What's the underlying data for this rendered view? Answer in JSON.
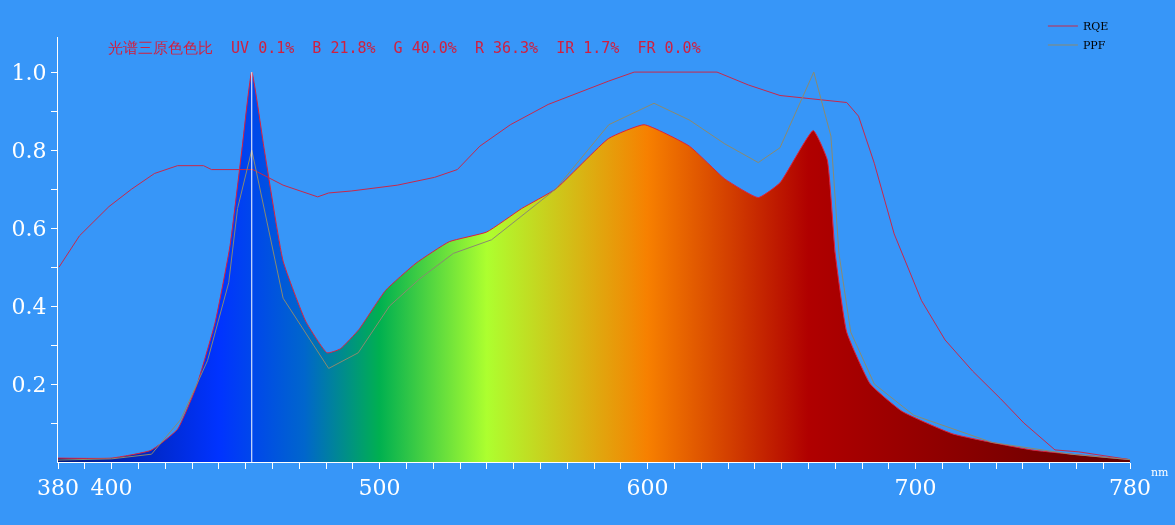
{
  "chart_data": {
    "type": "area",
    "annotations": [
      "光谱三原色色比  UV 0.1%  B 21.8%  G 40.0%  R 36.3%  IR 1.7%  FR 0.0%"
    ],
    "xlabel": "nm",
    "series": [
      {
        "color": "#e0203a",
        "x": [
          380,
          400,
          414.7,
          424.6,
          431.7,
          438.7,
          444.2,
          448.6,
          452.3,
          457,
          464,
          472.5,
          480.4,
          485.3,
          492.3,
          502.2,
          513.6,
          526,
          540,
          553,
          565.7,
          585.5,
          598.7,
          615.6,
          628.8,
          641.3,
          649.4,
          661.8,
          667,
          670,
          674.3,
          683.1,
          694.9,
          713.9,
          743.3,
          780
        ],
        "values": [
          0.01,
          0.01,
          0.03,
          0.084,
          0.195,
          0.36,
          0.555,
          0.8,
          1.0,
          0.8,
          0.515,
          0.36,
          0.28,
          0.29,
          0.34,
          0.44,
          0.51,
          0.565,
          0.59,
          0.65,
          0.7,
          0.83,
          0.865,
          0.81,
          0.726,
          0.678,
          0.716,
          0.85,
          0.776,
          0.535,
          0.333,
          0.2,
          0.13,
          0.072,
          0.031,
          0.006
        ]
      },
      {
        "type": "line",
        "name": "RQE",
        "color": "#c8284a",
        "x": [
          380.4,
          388,
          399,
          407.5,
          416,
          424.6,
          434.3,
          437.3,
          452.7,
          464,
          476.9,
          481,
          489.4,
          506.6,
          520.5,
          529,
          537.4,
          548.8,
          562.9,
          585.5,
          595,
          625.9,
          637.6,
          649.4,
          674.3,
          678.7,
          684.6,
          692,
          702.2,
          711,
          721.3,
          731.6,
          740.4,
          752,
          760.9,
          780
        ],
        "values": [
          0.5,
          0.58,
          0.655,
          0.7,
          0.74,
          0.76,
          0.76,
          0.75,
          0.75,
          0.71,
          0.68,
          0.69,
          0.695,
          0.71,
          0.73,
          0.75,
          0.81,
          0.865,
          0.917,
          0.977,
          1.0,
          1.0,
          0.967,
          0.94,
          0.922,
          0.887,
          0.766,
          0.585,
          0.414,
          0.313,
          0.233,
          0.163,
          0.1,
          0.031,
          0.026,
          0.006
        ]
      },
      {
        "type": "line",
        "name": "PPF",
        "color": "#8a8a70",
        "x": [
          380,
          400,
          414.9,
          425.9,
          435.8,
          443.7,
          447,
          452.3,
          464,
          481,
          492,
          503.7,
          515,
          527.5,
          541.8,
          565.7,
          585.5,
          602.4,
          615.6,
          628.8,
          641.3,
          649.4,
          662,
          668.4,
          671.4,
          675.8,
          684.6,
          699.3,
          728.6,
          758,
          780
        ],
        "values": [
          0.005,
          0.008,
          0.02,
          0.11,
          0.26,
          0.46,
          0.65,
          0.8,
          0.42,
          0.24,
          0.28,
          0.4,
          0.47,
          0.535,
          0.57,
          0.7,
          0.865,
          0.92,
          0.877,
          0.816,
          0.768,
          0.806,
          1.0,
          0.836,
          0.535,
          0.333,
          0.2,
          0.12,
          0.05,
          0.02,
          0.006
        ]
      }
    ],
    "ref_lines": [
      {
        "axis": "x",
        "value": 452.3,
        "color": "#ffffff"
      }
    ],
    "xlim": [
      380,
      780
    ],
    "xticks": [
      380,
      {
        "value": 390,
        "label": null
      },
      400,
      {
        "value": 410,
        "label": null
      },
      {
        "value": 420,
        "label": null
      },
      {
        "value": 430,
        "label": null
      },
      {
        "value": 440,
        "label": null
      },
      {
        "value": 450,
        "label": null
      },
      {
        "value": 460,
        "label": null
      },
      {
        "value": 470,
        "label": null
      },
      {
        "value": 480,
        "label": null
      },
      {
        "value": 490,
        "label": null
      },
      500,
      {
        "value": 510,
        "label": null
      },
      {
        "value": 520,
        "label": null
      },
      {
        "value": 530,
        "label": null
      },
      {
        "value": 540,
        "label": null
      },
      {
        "value": 550,
        "label": null
      },
      {
        "value": 560,
        "label": null
      },
      {
        "value": 570,
        "label": null
      },
      {
        "value": 580,
        "label": null
      },
      {
        "value": 590,
        "label": null
      },
      600,
      {
        "value": 610,
        "label": null
      },
      {
        "value": 620,
        "label": null
      },
      {
        "value": 630,
        "label": null
      },
      {
        "value": 640,
        "label": null
      },
      {
        "value": 650,
        "label": null
      },
      {
        "value": 660,
        "label": null
      },
      {
        "value": 670,
        "label": null
      },
      {
        "value": 680,
        "label": null
      },
      {
        "value": 690,
        "label": null
      },
      700,
      {
        "value": 710,
        "label": null
      },
      {
        "value": 720,
        "label": null
      },
      {
        "value": 730,
        "label": null
      },
      {
        "value": 740,
        "label": null
      },
      {
        "value": 750,
        "label": null
      },
      {
        "value": 760,
        "label": null
      },
      {
        "value": 770,
        "label": null
      },
      780
    ],
    "ylim": [
      0,
      1.09
    ],
    "yticks": [
      {
        "value": 0.1,
        "label": null
      },
      0.2,
      {
        "value": 0.3,
        "label": null
      },
      0.4,
      {
        "value": 0.5,
        "label": null
      },
      0.6,
      {
        "value": 0.7,
        "label": null
      },
      0.8,
      {
        "value": 0.9,
        "label": null
      },
      {
        "value": 1,
        "label": "1.0"
      }
    ],
    "legend": "top right",
    "grid": false
  }
}
